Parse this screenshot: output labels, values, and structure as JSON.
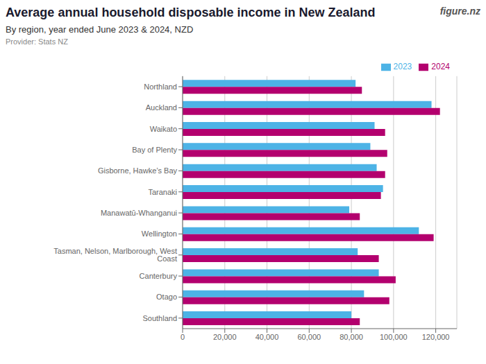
{
  "chart_data": {
    "type": "bar",
    "orientation": "horizontal",
    "title": "Average annual household disposable income in New Zealand",
    "subtitle": "By region, year ended June 2023 & 2024, NZD",
    "annotations": [
      "Provider: Stats NZ",
      "figure.nz"
    ],
    "categories": [
      "Northland",
      "Auckland",
      "Waikato",
      "Bay of Plenty",
      "Gisborne, Hawke’s Bay",
      "Taranaki",
      "Manawatū-Whanganui",
      "Wellington",
      "Tasman, Nelson, Marlborough, West Coast",
      "Canterbury",
      "Otago",
      "Southland"
    ],
    "series": [
      {
        "name": "2023",
        "color": "#4db3e6",
        "values": [
          82000,
          118000,
          91000,
          89000,
          92000,
          95000,
          79000,
          112000,
          83000,
          93000,
          86000,
          80000
        ]
      },
      {
        "name": "2024",
        "color": "#b3006e",
        "values": [
          85000,
          122000,
          96000,
          97000,
          96000,
          94000,
          84000,
          119000,
          93000,
          101000,
          98000,
          84000
        ]
      }
    ],
    "xlim": [
      0,
      130000
    ],
    "xticks": [
      0,
      {
        "value": 20000,
        "label": "20,000"
      },
      {
        "value": 40000,
        "label": "40,000"
      },
      {
        "value": 60000,
        "label": "60,000"
      },
      {
        "value": 80000,
        "label": "80,000"
      },
      {
        "value": 100000,
        "label": "100,000"
      },
      {
        "value": 120000,
        "label": "120,000"
      }
    ],
    "grid": true,
    "legend": "upper right"
  }
}
